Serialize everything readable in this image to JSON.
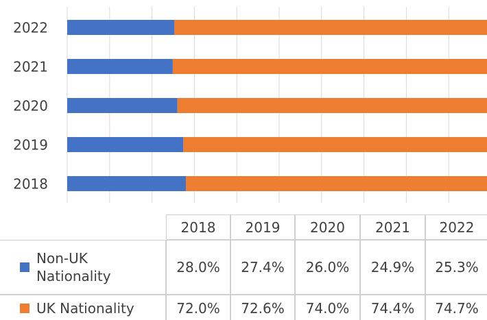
{
  "chart_data": {
    "type": "stacked_barh",
    "categories": [
      "2018",
      "2019",
      "2020",
      "2021",
      "2022"
    ],
    "series": [
      {
        "name": "Non-UK Nationality",
        "color": "#4472c4",
        "values": [
          28.0,
          27.4,
          26.0,
          24.9,
          25.3
        ],
        "value_labels": [
          "28.0%",
          "27.4%",
          "26.0%",
          "24.9%",
          "25.3%"
        ]
      },
      {
        "name": "UK Nationality",
        "color": "#ed7d31",
        "values": [
          72.0,
          72.6,
          74.0,
          74.4,
          74.7
        ],
        "value_labels": [
          "72.0%",
          "72.6%",
          "74.0%",
          "74.4%",
          "74.7%"
        ]
      }
    ],
    "xlim": [
      0,
      100
    ],
    "xticks": [
      0,
      10,
      20,
      30,
      40,
      50,
      60,
      70,
      80,
      90,
      100
    ],
    "grid": true
  }
}
